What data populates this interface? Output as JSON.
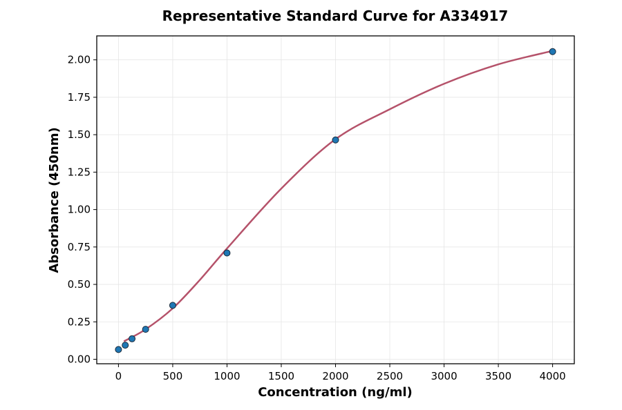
{
  "chart_data": {
    "type": "scatter",
    "title": "Representative Standard Curve for A334917",
    "xlabel": "Concentration (ng/ml)",
    "ylabel": "Absorbance (450nm)",
    "xlim": [
      -200,
      4200
    ],
    "ylim": [
      -0.03,
      2.16
    ],
    "xticks": [
      0,
      500,
      1000,
      1500,
      2000,
      2500,
      3000,
      3500,
      4000
    ],
    "yticks": [
      "0.00",
      "0.25",
      "0.50",
      "0.75",
      "1.00",
      "1.25",
      "1.50",
      "1.75",
      "2.00"
    ],
    "grid": true,
    "points": {
      "x": [
        0,
        62.5,
        125,
        250,
        500,
        1000,
        2000,
        4000
      ],
      "y": [
        0.065,
        0.094,
        0.137,
        0.2,
        0.36,
        0.71,
        1.465,
        2.055
      ]
    },
    "fit_curve": {
      "x": [
        50,
        250,
        500,
        750,
        1000,
        1500,
        2000,
        2500,
        3000,
        3500,
        4000
      ],
      "y": [
        0.12,
        0.2,
        0.34,
        0.53,
        0.74,
        1.14,
        1.47,
        1.67,
        1.84,
        1.97,
        2.06
      ]
    },
    "colors": {
      "points": "#1f77b4",
      "curve": "#b5526a"
    }
  }
}
